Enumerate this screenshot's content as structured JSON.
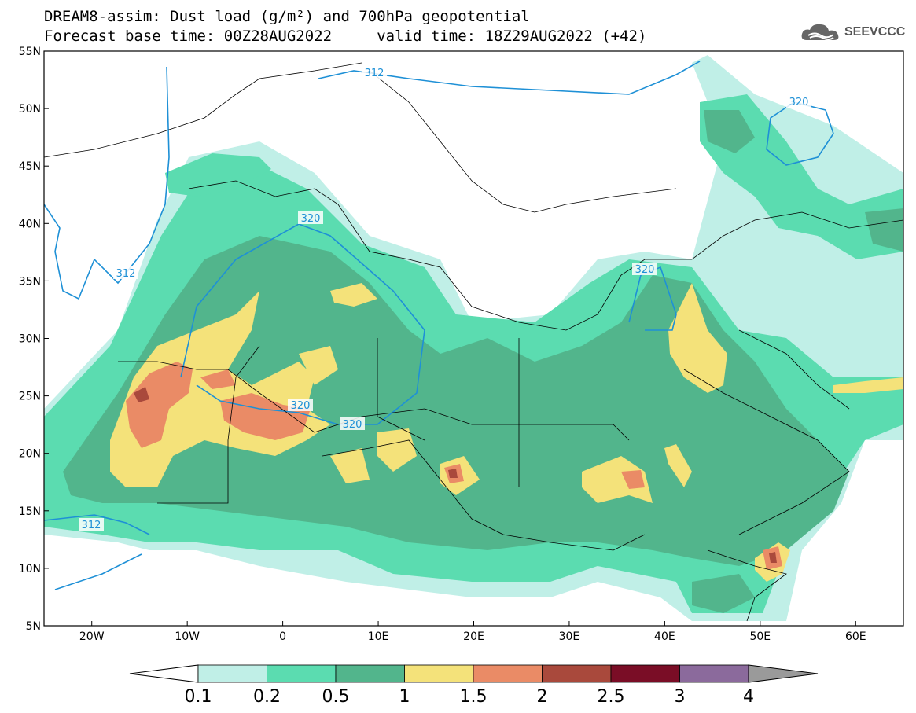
{
  "title": {
    "line1": "DREAM8-assim: Dust load (g/m²) and 700hPa geopotential",
    "line2": "Forecast base time: 00Z28AUG2022     valid time: 18Z29AUG2022 (+42)"
  },
  "logo": {
    "text": "SEEVCCC",
    "icon": "cloud-icon"
  },
  "axes": {
    "lat_labels": [
      "55N",
      "50N",
      "45N",
      "40N",
      "35N",
      "30N",
      "25N",
      "20N",
      "15N",
      "10N",
      "5N"
    ],
    "lon_labels": [
      "20W",
      "10W",
      "0",
      "10E",
      "20E",
      "30E",
      "40E",
      "50E",
      "60E"
    ],
    "lon_range": [
      -25,
      65
    ],
    "lat_range": [
      5,
      55
    ]
  },
  "contour_labels": [
    "312",
    "312",
    "320",
    "320",
    "320",
    "320",
    "320",
    "312"
  ],
  "colorbar": {
    "ticks": [
      "0.1",
      "0.2",
      "0.5",
      "1",
      "1.5",
      "2",
      "2.5",
      "3",
      "4"
    ],
    "colors": [
      "#c0efe7",
      "#5bdcb0",
      "#52b58c",
      "#f4e27a",
      "#ea8b66",
      "#a9493c",
      "#7a0d26",
      "#8b6a9c",
      "#9a9a9a"
    ]
  }
}
